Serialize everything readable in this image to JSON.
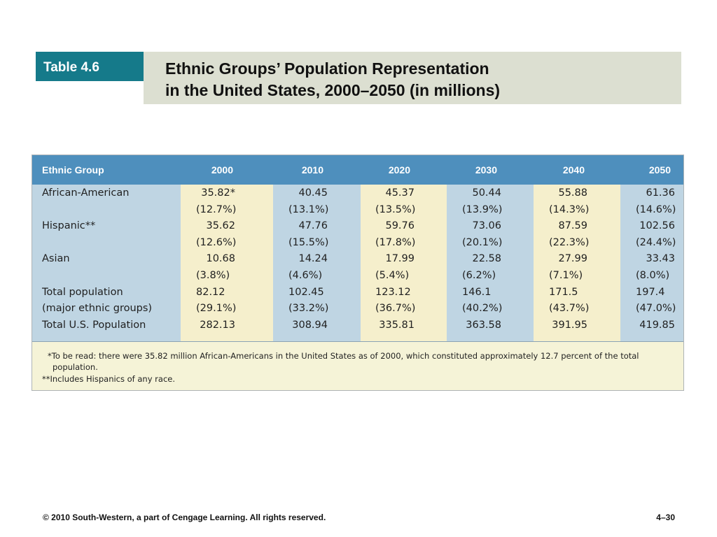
{
  "badge": "Table 4.6",
  "title": {
    "line1": "Ethnic Groups’ Population Representation",
    "line2": "in the United States, 2000–2050 (in millions)"
  },
  "table": {
    "header_label": "Ethnic Group",
    "years": [
      "2000",
      "2010",
      "2020",
      "2030",
      "2040",
      "2050"
    ],
    "rows": [
      {
        "label": "African-American",
        "cells": [
          "35.82*",
          "40.45",
          "45.37",
          "50.44",
          "55.88",
          "61.36"
        ],
        "kind": "num"
      },
      {
        "label": "",
        "cells": [
          "(12.7%)",
          "(13.1%)",
          "(13.5%)",
          "(13.9%)",
          "(14.3%)",
          "(14.6%)"
        ],
        "kind": "pct"
      },
      {
        "label": "Hispanic**",
        "cells": [
          "35.62",
          "47.76",
          "59.76",
          "73.06",
          "87.59",
          "102.56"
        ],
        "kind": "num"
      },
      {
        "label": "",
        "cells": [
          "(12.6%)",
          "(15.5%)",
          "(17.8%)",
          "(20.1%)",
          "(22.3%)",
          "(24.4%)"
        ],
        "kind": "pct"
      },
      {
        "label": "Asian",
        "cells": [
          "10.68",
          "14.24",
          "17.99",
          "22.58",
          "27.99",
          "33.43"
        ],
        "kind": "num"
      },
      {
        "label": "",
        "cells": [
          "(3.8%)",
          "(4.6%)",
          "(5.4%)",
          "(6.2%)",
          "(7.1%)",
          "(8.0%)"
        ],
        "kind": "pct"
      },
      {
        "label": "Total population",
        "cells": [
          "82.12",
          "102.45",
          "123.12",
          "146.1",
          "171.5",
          "197.4"
        ],
        "kind": "tot"
      },
      {
        "label": "(major ethnic groups)",
        "cells": [
          "(29.1%)",
          "(33.2%)",
          "(36.7%)",
          "(40.2%)",
          "(43.7%)",
          "(47.0%)"
        ],
        "kind": "pct"
      },
      {
        "label": "Total U.S. Population",
        "cells": [
          "282.13",
          "308.94",
          "335.81",
          "363.58",
          "391.95",
          "419.85"
        ],
        "kind": "num"
      }
    ]
  },
  "footnotes": {
    "note1_line1": "*To be read: there were 35.82 million African-Americans in the United States as of 2000, which constituted approximately 12.7 percent of the total",
    "note1_line2": "population.",
    "note2": "**Includes Hispanics of any race."
  },
  "footer": {
    "copyright": "© 2010 South-Western, a part of Cengage Learning. All rights reserved.",
    "page": "4–30"
  },
  "colors": {
    "badge": "#157a8a",
    "title_box": "#dcdfd1",
    "header_bar": "#4e8fbd",
    "body_blue": "#bfd5e3",
    "body_yellow": "#f5efcc",
    "footnote_bg": "#f5f3d7"
  }
}
